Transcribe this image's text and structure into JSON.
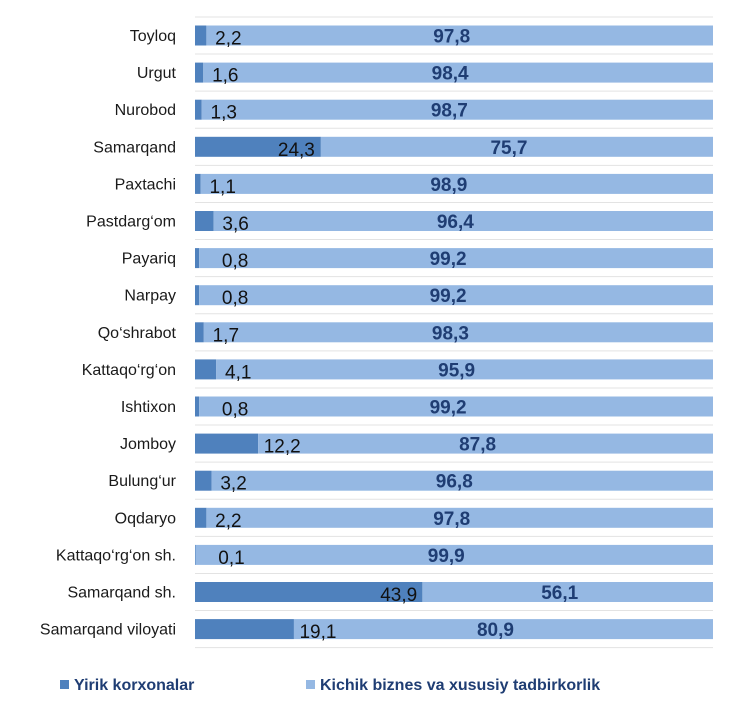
{
  "chart_data": {
    "type": "bar",
    "orientation": "horizontal",
    "stacked": true,
    "percent_stacked": true,
    "categories": [
      "Toyloq",
      "Urgut",
      "Nurobod",
      "Samarqand",
      "Paxtachi",
      "Pastdarg‘om",
      "Payariq",
      "Narpay",
      "Qo‘shrabot",
      "Kattaqo‘rg‘on",
      "Ishtixon",
      "Jomboy",
      "Bulung‘ur",
      "Oqdaryo",
      "Kattaqo‘rg‘on  sh.",
      "Samarqand sh.",
      "Samarqand viloyati"
    ],
    "series": [
      {
        "name": "Yirik korxonalar",
        "color": "#4f81bd",
        "values": [
          2.2,
          1.6,
          1.3,
          24.3,
          1.1,
          3.6,
          0.8,
          0.8,
          1.7,
          4.1,
          0.8,
          12.2,
          3.2,
          2.2,
          0.1,
          43.9,
          19.1
        ],
        "labels": [
          "2,2",
          "1,6",
          "1,3",
          "24,3",
          "1,1",
          "3,6",
          "0,8",
          "0,8",
          "1,7",
          "4,1",
          "0,8",
          "12,2",
          "3,2",
          "2,2",
          "0,1",
          "43,9",
          "19,1"
        ]
      },
      {
        "name": "Kichik biznes va xususiy tadbirkorlik",
        "color": "#95b8e3",
        "values": [
          97.8,
          98.4,
          98.7,
          75.7,
          98.9,
          96.4,
          99.2,
          99.2,
          98.3,
          95.9,
          99.2,
          87.8,
          96.8,
          97.8,
          99.9,
          56.1,
          80.9
        ],
        "labels": [
          "97,8",
          "98,4",
          "98,7",
          "75,7",
          "98,9",
          "96,4",
          "99,2",
          "99,2",
          "98,3",
          "95,9",
          "99,2",
          "87,8",
          "96,8",
          "97,8",
          "99,9",
          "56,1",
          "80,9"
        ]
      }
    ],
    "xlim": [
      0,
      100
    ],
    "grid": true,
    "legend": "bottom"
  }
}
